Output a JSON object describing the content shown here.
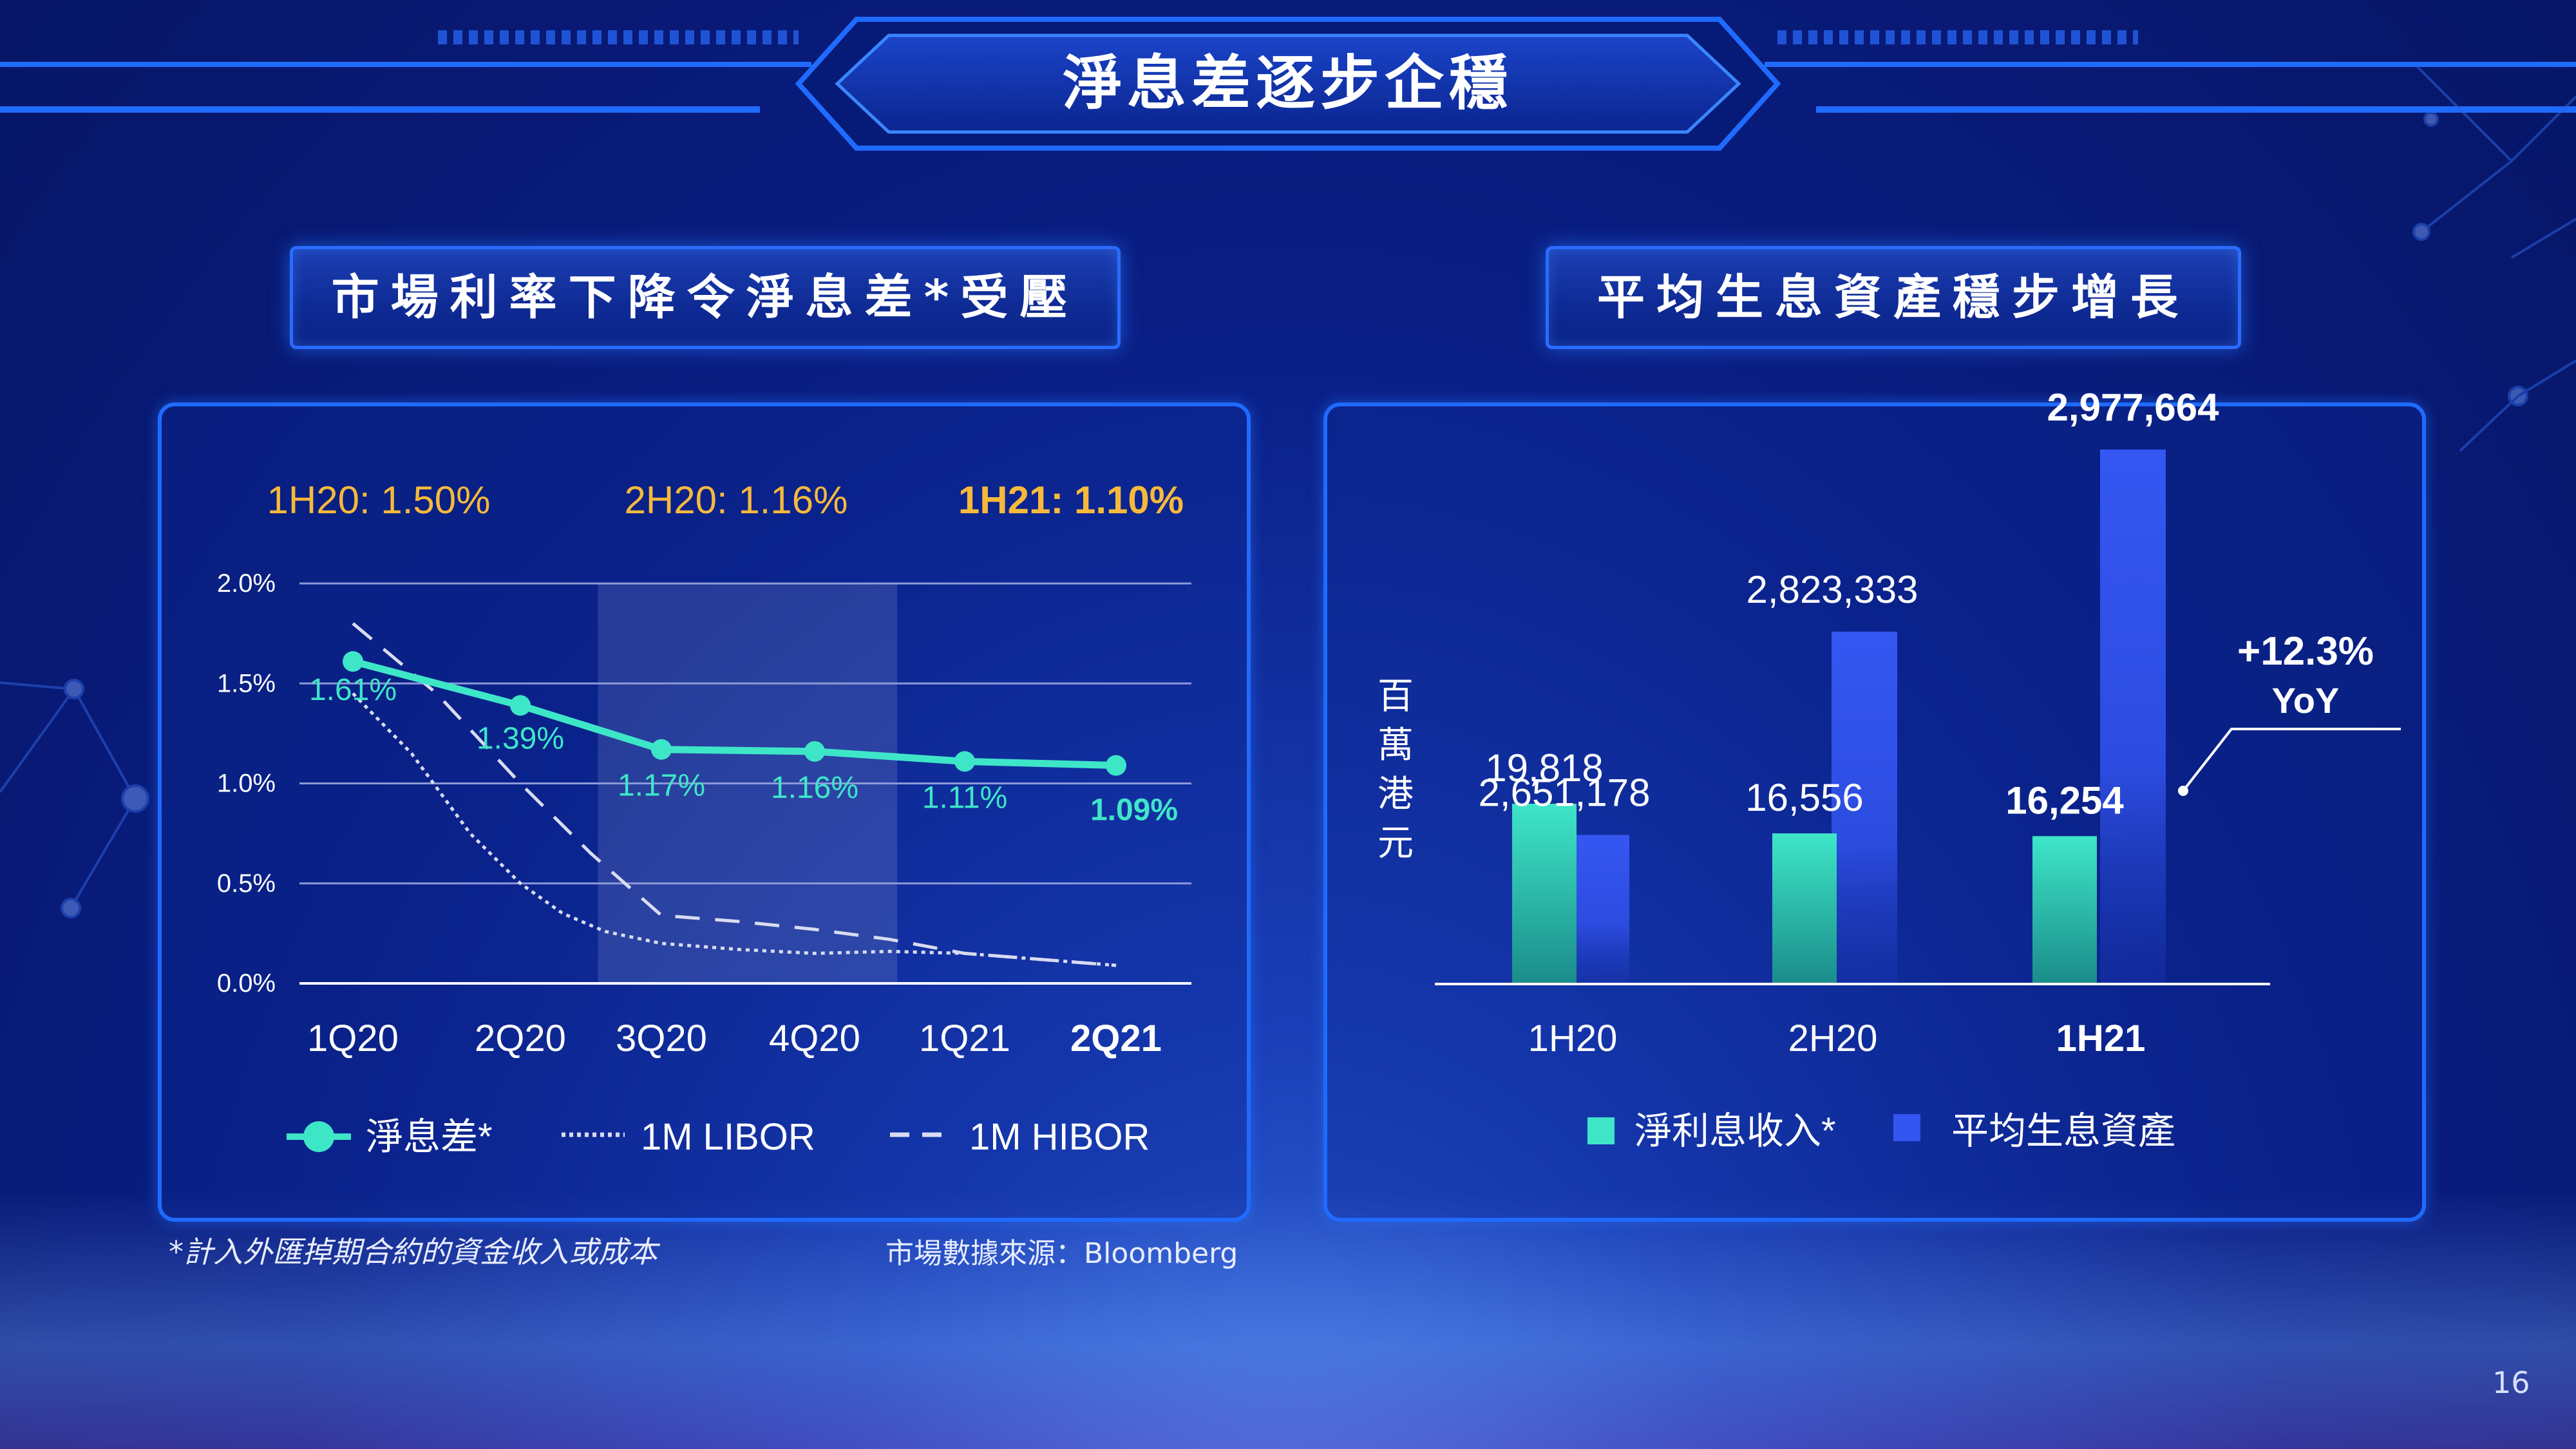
{
  "title": "淨息差逐步企穩",
  "left": {
    "header": "市場利率下降令淨息差*受壓",
    "summaries": [
      {
        "label": "1H20: 1.50%",
        "bold": false
      },
      {
        "label": "2H20: 1.16%",
        "bold": false
      },
      {
        "label": "1H21: 1.10%",
        "bold": true
      }
    ]
  },
  "right": {
    "header": "平均生息資產穩步增長",
    "yoy_value": "+12.3%",
    "yoy_label": "YoY"
  },
  "footnote": "*計入外匯掉期合約的資金收入或成本",
  "source": "市場數據來源：Bloomberg",
  "page_number": "16",
  "colors": {
    "nim": "#3ee6c8",
    "libor": "#d8dcf0",
    "hibor": "#d8dcf0",
    "nii": "#3ee6c8",
    "assets": "#3355f0",
    "summary": "#f6b93b"
  },
  "chart_data": [
    {
      "type": "line",
      "categories": [
        "1Q20",
        "2Q20",
        "3Q20",
        "4Q20",
        "1Q21",
        "2Q21"
      ],
      "highlight_category_range": [
        "3Q20",
        "1Q21"
      ],
      "bold_categories": [
        "2Q21"
      ],
      "ylim": [
        0.0,
        2.0
      ],
      "yticks": [
        "0.0%",
        "0.5%",
        "1.0%",
        "1.5%",
        "2.0%"
      ],
      "grid": true,
      "legend_position": "bottom",
      "series": [
        {
          "name": "淨息差*",
          "style": "solid-markers",
          "values": [
            1.61,
            1.39,
            1.17,
            1.16,
            1.11,
            1.09
          ],
          "labels": [
            "1.61%",
            "1.39%",
            "1.17%",
            "1.16%",
            "1.11%",
            "1.09%"
          ]
        },
        {
          "name": "1M LIBOR",
          "style": "dotted",
          "x": [
            0.0,
            0.35,
            0.7,
            1.0,
            1.3,
            1.6,
            2.0,
            2.5,
            3.0,
            3.5,
            4.0,
            4.5,
            5.0
          ],
          "values": [
            1.45,
            1.15,
            0.75,
            0.5,
            0.35,
            0.26,
            0.2,
            0.17,
            0.15,
            0.16,
            0.15,
            0.12,
            0.09
          ]
        },
        {
          "name": "1M HIBOR",
          "style": "dashed",
          "x": [
            0.0,
            0.5,
            1.0,
            1.5,
            2.0,
            2.5,
            3.0,
            3.5,
            4.0,
            4.5,
            5.0
          ],
          "values": [
            1.8,
            1.45,
            1.0,
            0.65,
            0.34,
            0.31,
            0.27,
            0.22,
            0.15,
            0.12,
            0.09
          ]
        }
      ]
    },
    {
      "type": "bar",
      "categories": [
        "1H20",
        "2H20",
        "1H21"
      ],
      "bold_categories": [
        "1H21"
      ],
      "ylabel": "百萬港元",
      "legend_position": "bottom",
      "series": [
        {
          "name": "淨利息收入*",
          "values": [
            19818,
            16556,
            16254
          ],
          "labels": [
            "19,818",
            "16,556",
            "16,254"
          ]
        },
        {
          "name": "平均生息資產",
          "values": [
            2651178,
            2823333,
            2977664
          ],
          "labels": [
            "2,651,178",
            "2,823,333",
            "2,977,664"
          ]
        }
      ]
    }
  ]
}
